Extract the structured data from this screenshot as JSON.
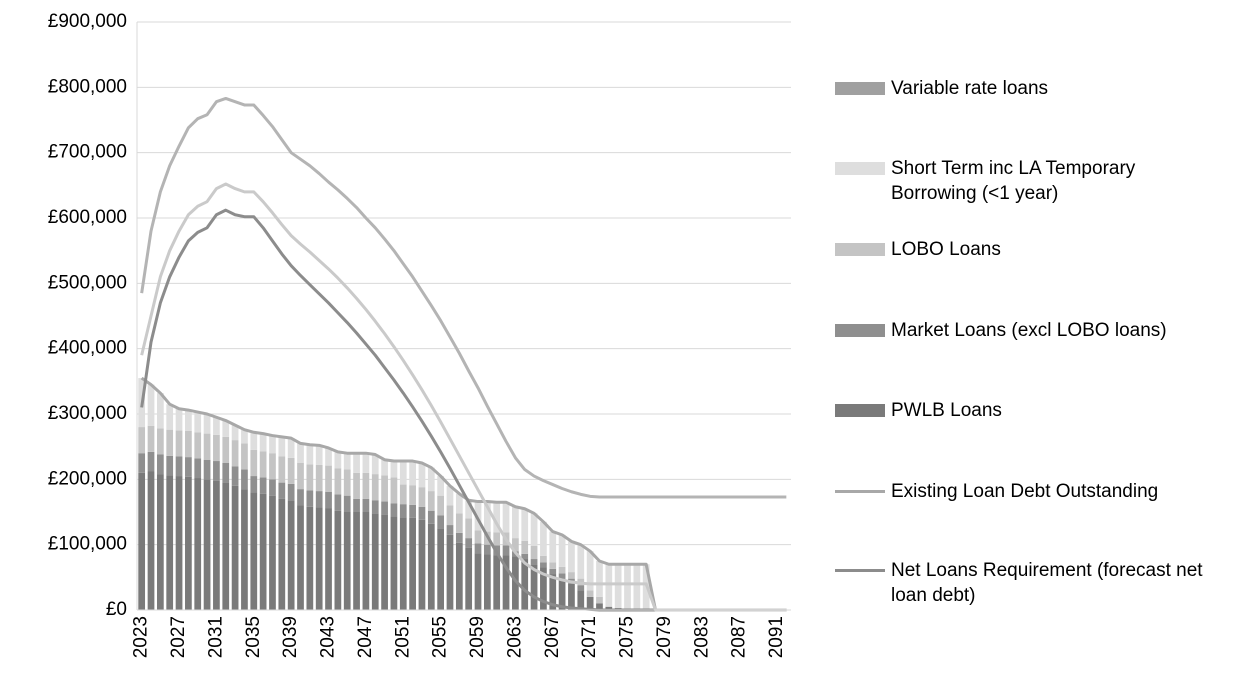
{
  "chart_data": {
    "type": "bar",
    "stacked": true,
    "categories": [
      "2023",
      null,
      null,
      null,
      "2027",
      null,
      null,
      null,
      "2031",
      null,
      null,
      null,
      "2035",
      null,
      null,
      null,
      "2039",
      null,
      null,
      null,
      "2043",
      null,
      null,
      null,
      "2047",
      null,
      null,
      null,
      "2051",
      null,
      null,
      null,
      "2055",
      null,
      null,
      null,
      "2059",
      null,
      null,
      null,
      "2063",
      null,
      null,
      null,
      "2067",
      null,
      null,
      null,
      "2071",
      null,
      null,
      null,
      "2075",
      null,
      null,
      null,
      "2079",
      null,
      null,
      null,
      "2083",
      null,
      null,
      null,
      "2087",
      null,
      null,
      null,
      "2091",
      null
    ],
    "ylim": [
      0,
      900000
    ],
    "yticks": [
      {
        "value": 0,
        "label": "£0"
      },
      {
        "value": 100000,
        "label": "£100,000"
      },
      {
        "value": 200000,
        "label": "£200,000"
      },
      {
        "value": 300000,
        "label": "£300,000"
      },
      {
        "value": 400000,
        "label": "£400,000"
      },
      {
        "value": 500000,
        "label": "£500,000"
      },
      {
        "value": 600000,
        "label": "£600,000"
      },
      {
        "value": 700000,
        "label": "£700,000"
      },
      {
        "value": 800000,
        "label": "£800,000"
      },
      {
        "value": 900000,
        "label": "£900,000"
      }
    ],
    "grid": true,
    "legend": "right",
    "series": [
      {
        "name": "PWLB Loans",
        "type": "bar",
        "color": "#7a7a7a",
        "values": [
          210000,
          212000,
          208000,
          206000,
          205000,
          204000,
          202000,
          200000,
          198000,
          195000,
          190000,
          185000,
          180000,
          178000,
          175000,
          170000,
          168000,
          160000,
          158000,
          157000,
          156000,
          152000,
          150000,
          150000,
          150000,
          148000,
          146000,
          143000,
          142000,
          141000,
          138000,
          132000,
          125000,
          115000,
          103000,
          95000,
          87000,
          85000,
          84000,
          84000,
          82000,
          78000,
          70000,
          65000,
          55000,
          48000,
          40000,
          30000,
          20000,
          10000,
          5000,
          3000,
          2000,
          2000,
          2000,
          0,
          0,
          0,
          0,
          0,
          0,
          0,
          0,
          0,
          0,
          0,
          0,
          0,
          0,
          0
        ]
      },
      {
        "name": "Market Loans (excl LOBO loans)",
        "type": "bar",
        "color": "#8f8f8f",
        "values": [
          30000,
          30000,
          30000,
          30000,
          30000,
          30000,
          30000,
          30000,
          30000,
          30000,
          30000,
          30000,
          25000,
          25000,
          25000,
          25000,
          25000,
          25000,
          25000,
          25000,
          25000,
          25000,
          25000,
          20000,
          20000,
          20000,
          20000,
          20000,
          20000,
          20000,
          20000,
          20000,
          20000,
          15000,
          15000,
          15000,
          15000,
          15000,
          15000,
          15000,
          8000,
          8000,
          8000,
          8000,
          8000,
          8000,
          8000,
          8000,
          0,
          0,
          0,
          0,
          0,
          0,
          0,
          0,
          0,
          0,
          0,
          0,
          0,
          0,
          0,
          0,
          0,
          0,
          0,
          0,
          0,
          0
        ]
      },
      {
        "name": "LOBO Loans",
        "type": "bar",
        "color": "#c4c4c4",
        "values": [
          40000,
          40000,
          40000,
          40000,
          40000,
          40000,
          40000,
          40000,
          40000,
          40000,
          40000,
          40000,
          40000,
          40000,
          40000,
          40000,
          40000,
          40000,
          40000,
          40000,
          40000,
          40000,
          40000,
          40000,
          40000,
          40000,
          40000,
          40000,
          30000,
          30000,
          30000,
          30000,
          30000,
          30000,
          30000,
          30000,
          20000,
          20000,
          20000,
          20000,
          20000,
          20000,
          20000,
          10000,
          10000,
          10000,
          10000,
          10000,
          10000,
          10000,
          0,
          0,
          0,
          0,
          0,
          0,
          0,
          0,
          0,
          0,
          0,
          0,
          0,
          0,
          0,
          0,
          0,
          0,
          0,
          0
        ]
      },
      {
        "name": "Short Term inc LA Temporary Borrowing (<1 year)",
        "type": "bar",
        "color": "#dedede",
        "values": [
          75000,
          63000,
          54000,
          39000,
          33000,
          32000,
          31000,
          30000,
          27000,
          25000,
          23000,
          21000,
          27000,
          27000,
          27000,
          30000,
          30000,
          30000,
          30000,
          30000,
          27000,
          25000,
          25000,
          30000,
          30000,
          30000,
          24000,
          25000,
          36000,
          37000,
          37000,
          36000,
          30000,
          30000,
          30000,
          28000,
          44000,
          46000,
          46000,
          46000,
          48000,
          49000,
          50000,
          52000,
          47000,
          49000,
          47000,
          52000,
          60000,
          55000,
          65000,
          67000,
          68000,
          68000,
          68000,
          0,
          0,
          0,
          0,
          0,
          0,
          0,
          0,
          0,
          0,
          0,
          0,
          0,
          0,
          0
        ]
      },
      {
        "name": "Variable rate loans",
        "type": "bar",
        "color": "#a0a0a0",
        "values": [
          0,
          0,
          0,
          0,
          0,
          0,
          0,
          0,
          0,
          0,
          0,
          0,
          0,
          0,
          0,
          0,
          0,
          0,
          0,
          0,
          0,
          0,
          0,
          0,
          0,
          0,
          0,
          0,
          0,
          0,
          0,
          0,
          0,
          0,
          0,
          0,
          0,
          0,
          0,
          0,
          0,
          0,
          0,
          0,
          0,
          0,
          0,
          0,
          0,
          0,
          0,
          0,
          0,
          0,
          0,
          0,
          0,
          0,
          0,
          0,
          0,
          0,
          0,
          0,
          0,
          0,
          0,
          0,
          0,
          0
        ]
      },
      {
        "name": "Existing Loan Debt Outstanding",
        "type": "line",
        "color": "#a8a8a8",
        "values": [
          355000,
          345000,
          332000,
          315000,
          308000,
          306000,
          303000,
          300000,
          295000,
          290000,
          283000,
          276000,
          272000,
          270000,
          267000,
          265000,
          263000,
          255000,
          253000,
          252000,
          248000,
          242000,
          240000,
          240000,
          240000,
          238000,
          230000,
          228000,
          228000,
          228000,
          225000,
          218000,
          205000,
          190000,
          178000,
          168000,
          166000,
          166000,
          165000,
          165000,
          158000,
          155000,
          148000,
          135000,
          120000,
          115000,
          105000,
          100000,
          90000,
          75000,
          70000,
          70000,
          70000,
          70000,
          70000,
          0,
          0,
          0,
          0,
          0,
          0,
          0,
          0,
          0,
          0,
          0,
          0,
          0,
          0,
          0
        ]
      },
      {
        "name": "Net Loans Requirement (forecast net loan debt)",
        "type": "line",
        "color": "#8c8c8c",
        "values": [
          310000,
          410000,
          470000,
          510000,
          540000,
          565000,
          578000,
          585000,
          605000,
          612000,
          605000,
          602000,
          602000,
          585000,
          565000,
          545000,
          527000,
          512000,
          498000,
          484000,
          470000,
          455000,
          440000,
          424000,
          407000,
          390000,
          371000,
          352000,
          332000,
          311000,
          289000,
          266000,
          242000,
          217000,
          191000,
          165000,
          139000,
          113000,
          88000,
          65000,
          45000,
          30000,
          20000,
          13000,
          8000,
          5000,
          3000,
          2000,
          1000,
          0,
          0,
          0,
          0,
          0,
          0,
          0,
          0,
          0,
          0,
          0,
          0,
          0,
          0,
          0,
          0,
          0,
          0,
          0,
          0,
          0
        ]
      },
      {
        "type": "line",
        "color": "#b4b4b4",
        "values": [
          485000,
          580000,
          640000,
          680000,
          710000,
          738000,
          752000,
          758000,
          778000,
          783000,
          778000,
          773000,
          773000,
          757000,
          740000,
          720000,
          700000,
          690000,
          680000,
          668000,
          655000,
          643000,
          630000,
          616000,
          600000,
          585000,
          568000,
          550000,
          530000,
          510000,
          488000,
          466000,
          443000,
          418000,
          393000,
          366000,
          340000,
          312000,
          285000,
          258000,
          233000,
          215000,
          205000,
          198000,
          192000,
          186000,
          181000,
          177000,
          174000,
          173000,
          173000,
          173000,
          173000,
          173000,
          173000,
          173000,
          173000,
          173000,
          173000,
          173000,
          173000,
          173000,
          173000,
          173000,
          173000,
          173000,
          173000,
          173000,
          173000,
          173000
        ]
      },
      {
        "type": "line",
        "color": "#cacaca",
        "values": [
          390000,
          450000,
          510000,
          550000,
          580000,
          605000,
          618000,
          625000,
          645000,
          652000,
          645000,
          640000,
          640000,
          625000,
          608000,
          590000,
          573000,
          560000,
          548000,
          535000,
          522000,
          508000,
          493000,
          477000,
          460000,
          442000,
          423000,
          403000,
          382000,
          360000,
          337000,
          313000,
          288000,
          262000,
          236000,
          210000,
          184000,
          158000,
          132000,
          108000,
          88000,
          72000,
          62000,
          55000,
          50000,
          46000,
          43000,
          41000,
          40000,
          40000,
          40000,
          40000,
          40000,
          40000,
          40000,
          0,
          0,
          0,
          0,
          0,
          0,
          0,
          0,
          0,
          0,
          0,
          0,
          0,
          0,
          0
        ]
      }
    ]
  }
}
